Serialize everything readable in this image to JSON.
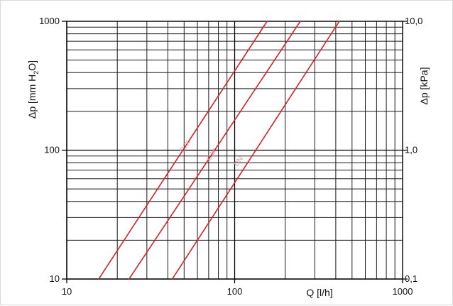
{
  "chart_data": {
    "type": "line",
    "x_scale": "log",
    "y_scale": "log",
    "xlim": [
      10,
      1000
    ],
    "ylim": [
      10,
      1000
    ],
    "y2lim": [
      0.1,
      10.0
    ],
    "xlabel": "Q [l/h]",
    "ylabel": "Δp [mm H2O]",
    "ylabel_main": "Δp [mm H",
    "ylabel_sub": "2",
    "ylabel_tail": "O]",
    "y2label": "Δp [kPa]",
    "x_ticks": [
      "10",
      "100",
      "1000"
    ],
    "y_ticks": [
      "10",
      "100",
      "1000"
    ],
    "y2_ticks": [
      "0,1",
      "1,0",
      "10,0"
    ],
    "grid": true,
    "line_color": "#d6202a",
    "series": [
      {
        "points": [
          [
            15.5,
            10
          ],
          [
            156,
            1000
          ]
        ]
      },
      {
        "points": [
          [
            23.5,
            10
          ],
          [
            246,
            1000
          ]
        ]
      },
      {
        "points": [
          [
            42.5,
            10
          ],
          [
            420,
            1000
          ]
        ]
      }
    ],
    "annotations": [
      {
        "text": "CJK",
        "x": 52,
        "y": 105
      },
      {
        "text": "CJK",
        "x": 75,
        "y": 90
      },
      {
        "text": "DN",
        "x": 108,
        "y": 80
      }
    ]
  }
}
